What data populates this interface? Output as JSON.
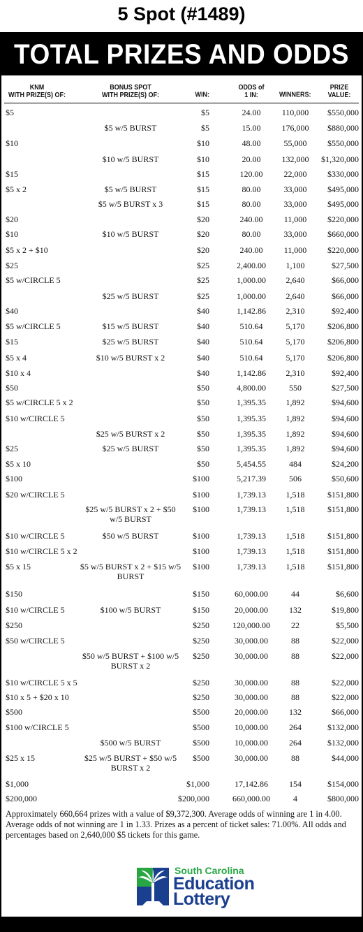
{
  "title": "5 Spot (#1489)",
  "banner": "TOTAL PRIZES AND ODDS",
  "headers": {
    "knm": "KNM\nWITH PRIZE(S) OF:",
    "bonus": "BONUS SPOT\nWITH PRIZE(S) OF:",
    "win": "WIN:",
    "odds": "ODDS of\n1 IN:",
    "winners": "WINNERS:",
    "prize": "PRIZE\nVALUE:"
  },
  "rows": [
    {
      "knm": "$5",
      "bonus": "",
      "win": "$5",
      "odds": "24.00",
      "winners": "110,000",
      "prize": "$550,000"
    },
    {
      "knm": "",
      "bonus": "$5 w/5 BURST",
      "win": "$5",
      "odds": "15.00",
      "winners": "176,000",
      "prize": "$880,000"
    },
    {
      "knm": "$10",
      "bonus": "",
      "win": "$10",
      "odds": "48.00",
      "winners": "55,000",
      "prize": "$550,000"
    },
    {
      "knm": "",
      "bonus": "$10 w/5 BURST",
      "win": "$10",
      "odds": "20.00",
      "winners": "132,000",
      "prize": "$1,320,000"
    },
    {
      "knm": "$15",
      "bonus": "",
      "win": "$15",
      "odds": "120.00",
      "winners": "22,000",
      "prize": "$330,000"
    },
    {
      "knm": "$5 x 2",
      "bonus": "$5 w/5 BURST",
      "win": "$15",
      "odds": "80.00",
      "winners": "33,000",
      "prize": "$495,000"
    },
    {
      "knm": "",
      "bonus": "$5 w/5 BURST x 3",
      "win": "$15",
      "odds": "80.00",
      "winners": "33,000",
      "prize": "$495,000"
    },
    {
      "knm": "$20",
      "bonus": "",
      "win": "$20",
      "odds": "240.00",
      "winners": "11,000",
      "prize": "$220,000"
    },
    {
      "knm": "$10",
      "bonus": "$10 w/5 BURST",
      "win": "$20",
      "odds": "80.00",
      "winners": "33,000",
      "prize": "$660,000"
    },
    {
      "knm": "$5 x 2 + $10",
      "bonus": "",
      "win": "$20",
      "odds": "240.00",
      "winners": "11,000",
      "prize": "$220,000"
    },
    {
      "knm": "$25",
      "bonus": "",
      "win": "$25",
      "odds": "2,400.00",
      "winners": "1,100",
      "prize": "$27,500"
    },
    {
      "knm": "$5 w/CIRCLE 5",
      "bonus": "",
      "win": "$25",
      "odds": "1,000.00",
      "winners": "2,640",
      "prize": "$66,000"
    },
    {
      "knm": "",
      "bonus": "$25 w/5 BURST",
      "win": "$25",
      "odds": "1,000.00",
      "winners": "2,640",
      "prize": "$66,000"
    },
    {
      "knm": "$40",
      "bonus": "",
      "win": "$40",
      "odds": "1,142.86",
      "winners": "2,310",
      "prize": "$92,400"
    },
    {
      "knm": "$5 w/CIRCLE 5",
      "bonus": "$15 w/5 BURST",
      "win": "$40",
      "odds": "510.64",
      "winners": "5,170",
      "prize": "$206,800"
    },
    {
      "knm": "$15",
      "bonus": "$25 w/5 BURST",
      "win": "$40",
      "odds": "510.64",
      "winners": "5,170",
      "prize": "$206,800"
    },
    {
      "knm": "$5 x 4",
      "bonus": "$10 w/5 BURST x 2",
      "win": "$40",
      "odds": "510.64",
      "winners": "5,170",
      "prize": "$206,800"
    },
    {
      "knm": "$10 x 4",
      "bonus": "",
      "win": "$40",
      "odds": "1,142.86",
      "winners": "2,310",
      "prize": "$92,400"
    },
    {
      "knm": "$50",
      "bonus": "",
      "win": "$50",
      "odds": "4,800.00",
      "winners": "550",
      "prize": "$27,500"
    },
    {
      "knm": "$5 w/CIRCLE 5 x 2",
      "bonus": "",
      "win": "$50",
      "odds": "1,395.35",
      "winners": "1,892",
      "prize": "$94,600"
    },
    {
      "knm": "$10 w/CIRCLE 5",
      "bonus": "",
      "win": "$50",
      "odds": "1,395.35",
      "winners": "1,892",
      "prize": "$94,600"
    },
    {
      "knm": "",
      "bonus": "$25 w/5 BURST x 2",
      "win": "$50",
      "odds": "1,395.35",
      "winners": "1,892",
      "prize": "$94,600"
    },
    {
      "knm": "$25",
      "bonus": "$25 w/5 BURST",
      "win": "$50",
      "odds": "1,395.35",
      "winners": "1,892",
      "prize": "$94,600"
    },
    {
      "knm": "$5 x 10",
      "bonus": "",
      "win": "$50",
      "odds": "5,454.55",
      "winners": "484",
      "prize": "$24,200"
    },
    {
      "knm": "$100",
      "bonus": "",
      "win": "$100",
      "odds": "5,217.39",
      "winners": "506",
      "prize": "$50,600"
    },
    {
      "knm": "$20 w/CIRCLE 5",
      "bonus": "",
      "win": "$100",
      "odds": "1,739.13",
      "winners": "1,518",
      "prize": "$151,800"
    },
    {
      "knm": "",
      "bonus": "$25 w/5 BURST x 2 + $50 w/5 BURST",
      "win": "$100",
      "odds": "1,739.13",
      "winners": "1,518",
      "prize": "$151,800"
    },
    {
      "knm": "$10 w/CIRCLE 5",
      "bonus": "$50 w/5 BURST",
      "win": "$100",
      "odds": "1,739.13",
      "winners": "1,518",
      "prize": "$151,800"
    },
    {
      "knm": "$10 w/CIRCLE 5 x 2",
      "bonus": "",
      "win": "$100",
      "odds": "1,739.13",
      "winners": "1,518",
      "prize": "$151,800"
    },
    {
      "knm": "$5 x 15",
      "bonus": "$5 w/5 BURST x 2 + $15 w/5 BURST",
      "win": "$100",
      "odds": "1,739.13",
      "winners": "1,518",
      "prize": "$151,800"
    },
    {
      "knm": "$150",
      "bonus": "",
      "win": "$150",
      "odds": "60,000.00",
      "winners": "44",
      "prize": "$6,600"
    },
    {
      "knm": "$10 w/CIRCLE 5",
      "bonus": "$100 w/5 BURST",
      "win": "$150",
      "odds": "20,000.00",
      "winners": "132",
      "prize": "$19,800"
    },
    {
      "knm": "$250",
      "bonus": "",
      "win": "$250",
      "odds": "120,000.00",
      "winners": "22",
      "prize": "$5,500"
    },
    {
      "knm": "$50 w/CIRCLE 5",
      "bonus": "",
      "win": "$250",
      "odds": "30,000.00",
      "winners": "88",
      "prize": "$22,000"
    },
    {
      "knm": "",
      "bonus": "$50 w/5 BURST + $100 w/5 BURST x 2",
      "win": "$250",
      "odds": "30,000.00",
      "winners": "88",
      "prize": "$22,000"
    },
    {
      "knm": "$10 w/CIRCLE 5 x 5",
      "bonus": "",
      "win": "$250",
      "odds": "30,000.00",
      "winners": "88",
      "prize": "$22,000"
    },
    {
      "knm": "$10 x 5 + $20 x 10",
      "bonus": "",
      "win": "$250",
      "odds": "30,000.00",
      "winners": "88",
      "prize": "$22,000"
    },
    {
      "knm": "$500",
      "bonus": "",
      "win": "$500",
      "odds": "20,000.00",
      "winners": "132",
      "prize": "$66,000"
    },
    {
      "knm": "$100 w/CIRCLE 5",
      "bonus": "",
      "win": "$500",
      "odds": "10,000.00",
      "winners": "264",
      "prize": "$132,000"
    },
    {
      "knm": "",
      "bonus": "$500 w/5 BURST",
      "win": "$500",
      "odds": "10,000.00",
      "winners": "264",
      "prize": "$132,000"
    },
    {
      "knm": "$25 x 15",
      "bonus": "$25 w/5 BURST + $50 w/5 BURST x 2",
      "win": "$500",
      "odds": "30,000.00",
      "winners": "88",
      "prize": "$44,000"
    },
    {
      "knm": "$1,000",
      "bonus": "",
      "win": "$1,000",
      "odds": "17,142.86",
      "winners": "154",
      "prize": "$154,000"
    },
    {
      "knm": "$200,000",
      "bonus": "",
      "win": "$200,000",
      "odds": "660,000.00",
      "winners": "4",
      "prize": "$800,000"
    }
  ],
  "footnote": "Approximately 660,664 prizes with a value of $9,372,300. Average odds of winning are 1 in 4.00. Average odds of not winning are 1 in 1.33. Prizes as a percent of ticket sales: 71.00%. All odds and percentages based on 2,640,000 $5 tickets for this game.",
  "logo": {
    "line1": "South Carolina",
    "line2": "Education",
    "line3": "Lottery",
    "icon": "palmetto-tree-logo",
    "colors": {
      "blue": "#1b3f8f",
      "green": "#27a744"
    }
  }
}
